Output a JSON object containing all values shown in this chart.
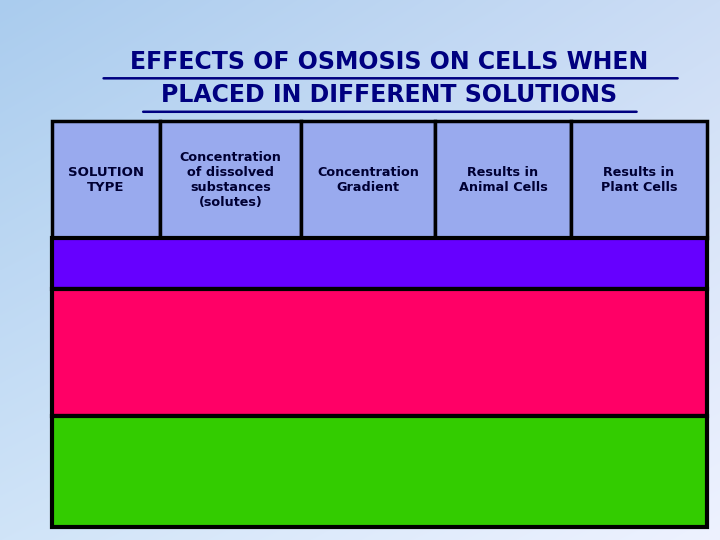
{
  "title_line1": "EFFECTS OF OSMOSIS ON CELLS WHEN",
  "title_line2": "PLACED IN DIFFERENT SOLUTIONS",
  "title_color": "#000080",
  "title_fontsize": 17,
  "header_bg": "#99aaee",
  "header_labels": [
    "SOLUTION\nTYPE",
    "Concentration\nof dissolved\nsubstances\n(solutes)",
    "Concentration\nGradient",
    "Results in\nAnimal Cells",
    "Results in\nPlant Cells"
  ],
  "row_colors": [
    "#6600ff",
    "#ff0066",
    "#33cc00"
  ],
  "border_color": "#000000",
  "border_lw": 2.5
}
